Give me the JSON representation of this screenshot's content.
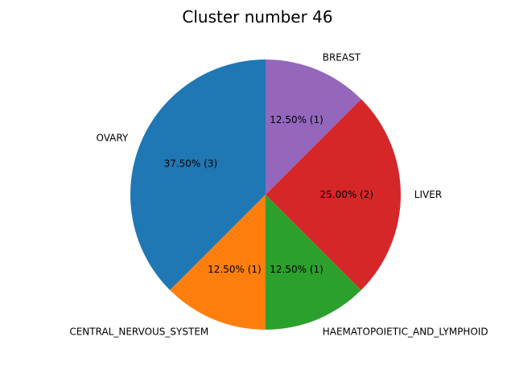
{
  "chart_data": {
    "type": "pie",
    "title": "Cluster number 46",
    "slices": [
      {
        "label": "OVARY",
        "value": 3,
        "percent_label": "37.50%  (3)",
        "color": "#1f77b4"
      },
      {
        "label": "CENTRAL_NERVOUS_SYSTEM",
        "value": 1,
        "percent_label": "12.50%  (1)",
        "color": "#ff7f0e"
      },
      {
        "label": "HAEMATOPOIETIC_AND_LYMPHOID",
        "value": 1,
        "percent_label": "12.50%  (1)",
        "color": "#2ca02c"
      },
      {
        "label": "LIVER",
        "value": 2,
        "percent_label": "25.00%  (2)",
        "color": "#d62728"
      },
      {
        "label": "BREAST",
        "value": 1,
        "percent_label": "12.50%  (1)",
        "color": "#9467bd"
      }
    ],
    "start_angle_deg": 90,
    "direction": "counterclockwise"
  }
}
